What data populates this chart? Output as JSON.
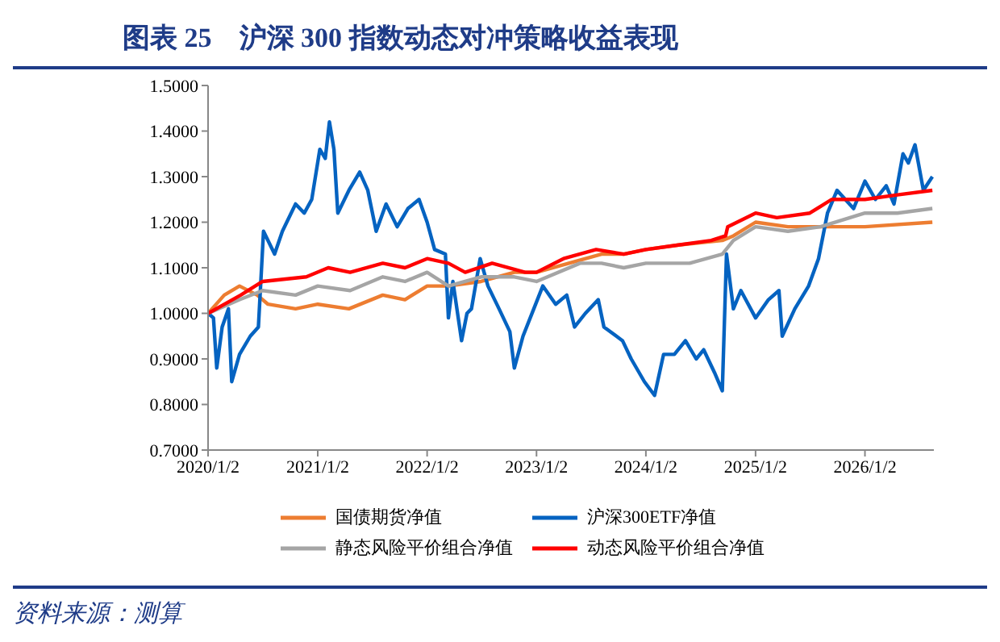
{
  "chart_data": {
    "type": "line",
    "title": "图表 25　沪深 300 指数动态对冲策略收益表现",
    "annotations": [
      "资料来源：测算"
    ],
    "xlim": [
      "2020-01-02",
      "2026-08-20"
    ],
    "xticks": [
      {
        "value": "2020-01-02",
        "label": "2020/1/2"
      },
      {
        "value": "2021-01-02",
        "label": "2021/1/2"
      },
      {
        "value": "2022-01-02",
        "label": "2022/1/2"
      },
      {
        "value": "2023-01-02",
        "label": "2023/1/2"
      },
      {
        "value": "2024-01-02",
        "label": "2024/1/2"
      },
      {
        "value": "2025-01-02",
        "label": "2025/1/2"
      },
      {
        "value": "2026-01-02",
        "label": "2026/1/2"
      }
    ],
    "ylim": [
      0.7,
      1.5
    ],
    "yticks": [
      {
        "value": 0.7,
        "label": "0.7000"
      },
      {
        "value": 0.8,
        "label": "0.8000"
      },
      {
        "value": 0.9,
        "label": "0.9000"
      },
      {
        "value": 1.0,
        "label": "1.0000"
      },
      {
        "value": 1.1,
        "label": "1.1000"
      },
      {
        "value": 1.2,
        "label": "1.2000"
      },
      {
        "value": 1.3,
        "label": "1.3000"
      },
      {
        "value": 1.4,
        "label": "1.4000"
      },
      {
        "value": 1.5,
        "label": "1.5000"
      }
    ],
    "grid": false,
    "legend": "bottom",
    "marker": "none",
    "line_style": "solid",
    "series": [
      {
        "name": "国债期货净值",
        "color": "#ed7d31",
        "x": [
          "2020-01-02",
          "2020-02-25",
          "2020-04-16",
          "2020-06-14",
          "2020-07-20",
          "2020-10-20",
          "2021-01-02",
          "2021-04-16",
          "2021-08-07",
          "2021-10-20",
          "2022-01-02",
          "2022-03-14",
          "2022-07-01",
          "2022-10-20",
          "2023-01-02",
          "2023-04-20",
          "2023-08-07",
          "2023-10-20",
          "2024-01-02",
          "2024-04-20",
          "2024-09-13",
          "2024-10-20",
          "2025-01-02",
          "2025-04-20",
          "2025-08-07",
          "2025-10-20",
          "2026-01-02",
          "2026-08-15"
        ],
        "values": [
          1.0,
          1.04,
          1.06,
          1.04,
          1.02,
          1.01,
          1.02,
          1.01,
          1.04,
          1.03,
          1.06,
          1.06,
          1.07,
          1.09,
          1.09,
          1.11,
          1.13,
          1.13,
          1.14,
          1.15,
          1.16,
          1.17,
          1.2,
          1.19,
          1.19,
          1.19,
          1.19,
          1.2
        ]
      },
      {
        "name": "沪深300ETF净值",
        "color": "#0563c1",
        "x": [
          "2020-01-02",
          "2020-01-20",
          "2020-01-31",
          "2020-02-18",
          "2020-03-10",
          "2020-03-21",
          "2020-04-16",
          "2020-05-22",
          "2020-06-18",
          "2020-07-05",
          "2020-08-11",
          "2020-09-06",
          "2020-10-20",
          "2020-11-18",
          "2020-12-13",
          "2021-01-09",
          "2021-01-27",
          "2021-02-10",
          "2021-02-25",
          "2021-03-10",
          "2021-04-16",
          "2021-05-22",
          "2021-06-18",
          "2021-07-16",
          "2021-08-18",
          "2021-09-24",
          "2021-10-30",
          "2021-12-06",
          "2022-01-02",
          "2022-01-27",
          "2022-03-04",
          "2022-03-14",
          "2022-03-29",
          "2022-04-27",
          "2022-05-15",
          "2022-05-30",
          "2022-06-28",
          "2022-07-24",
          "2022-08-30",
          "2022-10-05",
          "2022-10-20",
          "2022-11-18",
          "2022-12-24",
          "2023-01-23",
          "2023-03-07",
          "2023-04-13",
          "2023-05-09",
          "2023-06-14",
          "2023-07-27",
          "2023-08-15",
          "2023-10-16",
          "2023-11-14",
          "2023-12-28",
          "2024-01-31",
          "2024-03-01",
          "2024-04-06",
          "2024-05-13",
          "2024-06-18",
          "2024-07-13",
          "2024-08-18",
          "2024-09-13",
          "2024-09-27",
          "2024-10-20",
          "2024-11-14",
          "2025-01-02",
          "2025-02-14",
          "2025-03-21",
          "2025-04-01",
          "2025-05-13",
          "2025-06-28",
          "2025-07-31",
          "2025-08-30",
          "2025-10-01",
          "2025-11-25",
          "2026-01-02",
          "2026-02-06",
          "2026-03-14",
          "2026-04-09",
          "2026-05-09",
          "2026-05-27",
          "2026-06-18",
          "2026-07-16",
          "2026-08-15"
        ],
        "values": [
          1.0,
          0.99,
          0.88,
          0.97,
          1.01,
          0.85,
          0.91,
          0.95,
          0.97,
          1.18,
          1.13,
          1.18,
          1.24,
          1.22,
          1.25,
          1.36,
          1.34,
          1.42,
          1.36,
          1.22,
          1.27,
          1.31,
          1.27,
          1.18,
          1.24,
          1.19,
          1.23,
          1.25,
          1.2,
          1.14,
          1.13,
          0.99,
          1.07,
          0.94,
          1.0,
          1.01,
          1.12,
          1.06,
          1.01,
          0.96,
          0.88,
          0.95,
          1.01,
          1.06,
          1.02,
          1.04,
          0.97,
          1.0,
          1.03,
          0.97,
          0.94,
          0.9,
          0.85,
          0.82,
          0.91,
          0.91,
          0.94,
          0.9,
          0.92,
          0.87,
          0.83,
          1.13,
          1.01,
          1.05,
          0.99,
          1.03,
          1.05,
          0.95,
          1.01,
          1.06,
          1.12,
          1.22,
          1.27,
          1.23,
          1.29,
          1.25,
          1.28,
          1.24,
          1.35,
          1.33,
          1.37,
          1.27,
          1.3
        ]
      },
      {
        "name": "静态风险平价组合净值",
        "color": "#a5a5a5",
        "x": [
          "2020-01-02",
          "2020-04-16",
          "2020-07-02",
          "2020-10-20",
          "2021-01-02",
          "2021-04-20",
          "2021-08-07",
          "2021-10-20",
          "2022-01-02",
          "2022-03-14",
          "2022-07-01",
          "2022-10-20",
          "2023-01-02",
          "2023-05-27",
          "2023-08-07",
          "2023-10-20",
          "2024-01-02",
          "2024-05-27",
          "2024-09-13",
          "2024-10-20",
          "2025-01-02",
          "2025-04-20",
          "2025-08-07",
          "2026-01-02",
          "2026-04-20",
          "2026-08-15"
        ],
        "values": [
          1.0,
          1.03,
          1.05,
          1.04,
          1.06,
          1.05,
          1.08,
          1.07,
          1.09,
          1.06,
          1.08,
          1.08,
          1.07,
          1.11,
          1.11,
          1.1,
          1.11,
          1.11,
          1.13,
          1.16,
          1.19,
          1.18,
          1.19,
          1.22,
          1.22,
          1.23
        ]
      },
      {
        "name": "动态风险平价组合净值",
        "color": "#ff0000",
        "x": [
          "2020-01-02",
          "2020-04-20",
          "2020-07-02",
          "2020-11-25",
          "2021-02-06",
          "2021-04-20",
          "2021-08-07",
          "2021-10-20",
          "2022-01-02",
          "2022-03-14",
          "2022-05-09",
          "2022-08-07",
          "2022-11-25",
          "2023-01-02",
          "2023-04-02",
          "2023-07-20",
          "2023-10-20",
          "2024-01-02",
          "2024-04-20",
          "2024-08-07",
          "2024-09-24",
          "2024-10-01",
          "2025-01-02",
          "2025-03-14",
          "2025-07-02",
          "2025-09-13",
          "2026-01-02",
          "2026-04-20",
          "2026-08-15"
        ],
        "values": [
          1.0,
          1.04,
          1.07,
          1.08,
          1.1,
          1.09,
          1.11,
          1.1,
          1.12,
          1.11,
          1.09,
          1.11,
          1.09,
          1.09,
          1.12,
          1.14,
          1.13,
          1.14,
          1.15,
          1.16,
          1.17,
          1.19,
          1.22,
          1.21,
          1.22,
          1.25,
          1.25,
          1.26,
          1.27
        ]
      }
    ]
  }
}
